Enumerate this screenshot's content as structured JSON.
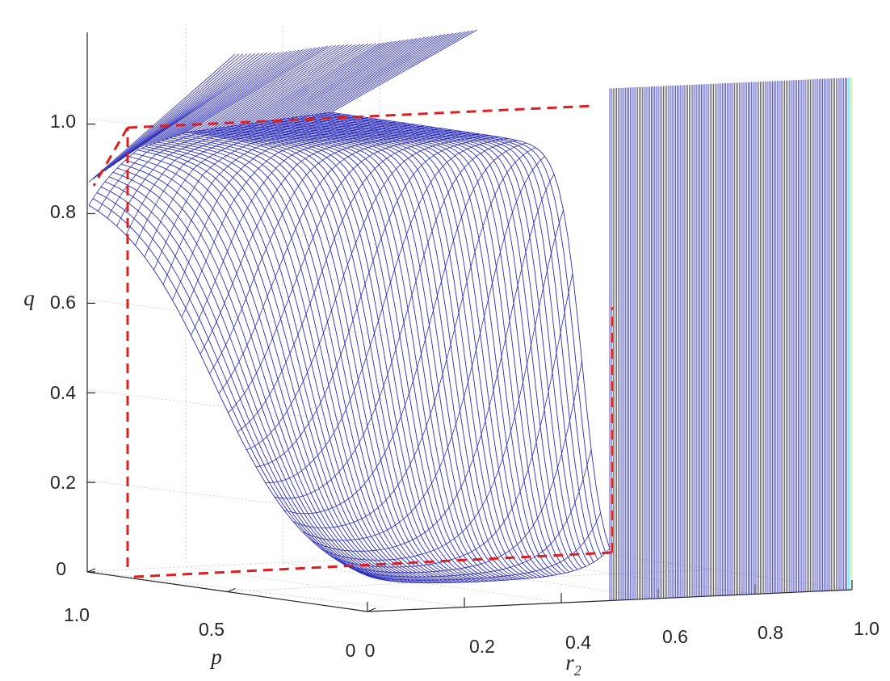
{
  "chart_data": {
    "type": "surface",
    "title": "",
    "xlabel": "r",
    "xlabel_sub": "2",
    "ylabel": "p",
    "zlabel": "q",
    "x_ticks": [
      0,
      0.2,
      0.4,
      0.6,
      0.8,
      1.0
    ],
    "x_tick_labels": [
      "0",
      "0.2",
      "0.4",
      "0.6",
      "0.8",
      "1.0"
    ],
    "y_ticks": [
      0,
      0.5,
      1.0
    ],
    "y_tick_labels": [
      "0",
      "0.5",
      "1.0"
    ],
    "z_ticks": [
      0,
      0.2,
      0.4,
      0.6,
      0.8,
      1.0
    ],
    "z_tick_labels": [
      "0",
      "0.2",
      "0.4",
      "0.6",
      "0.8",
      "1.0"
    ],
    "xlim": [
      0,
      1
    ],
    "ylim": [
      0,
      1
    ],
    "zlim": [
      0,
      1.15
    ],
    "grid": true,
    "mesh_color": "#2b2bb8",
    "surface_series": [
      {
        "x": 0.0,
        "q_at_p1": 0.86,
        "q_at_p0": 1.12,
        "q_at_p0.5": 0.82
      },
      {
        "x": 0.1,
        "q_at_p1": 0.93,
        "q_at_p0": 1.12,
        "q_at_p0.5": 0.55
      },
      {
        "x": 0.2,
        "q_at_p1": 0.96,
        "q_at_p0": 1.13,
        "q_at_p0.5": 0.3
      },
      {
        "x": 0.3,
        "q_at_p1": 0.97,
        "q_at_p0": 1.13,
        "q_at_p0.5": 0.15
      },
      {
        "x": 0.4,
        "q_at_p1": 0.98,
        "q_at_p0": 1.14,
        "q_at_p0.5": 0.08
      },
      {
        "x": 0.5,
        "q_at_p1": 0.99,
        "q_at_p0": 1.15,
        "q_at_p0.5": 0.05
      }
    ],
    "wall_region": {
      "x_from": 0.5,
      "x_to": 1.0,
      "q_top": 1.15
    },
    "reference_lines": {
      "color": "#dd1f1f",
      "style": "dashed",
      "segments": [
        {
          "from": {
            "x": 0,
            "p": 1,
            "q": 0
          },
          "to": {
            "x": 0,
            "p": 1,
            "q": 1
          }
        },
        {
          "from": {
            "x": 0,
            "p": 1,
            "q": 1
          },
          "to": {
            "x": 0.5,
            "p": 1,
            "q": 1
          }
        },
        {
          "from": {
            "x": 0.5,
            "p": 1,
            "q": 1
          },
          "to": {
            "x": 0.5,
            "p": 0,
            "q": 1
          }
        },
        {
          "from": {
            "x": 0,
            "p": 1,
            "q": 0
          },
          "to": {
            "x": 0.5,
            "p": 0,
            "q": 0
          }
        },
        {
          "from": {
            "x": 0.5,
            "p": 0,
            "q": 0
          },
          "to": {
            "x": 0.5,
            "p": 0,
            "q": 0.8
          }
        }
      ]
    }
  }
}
